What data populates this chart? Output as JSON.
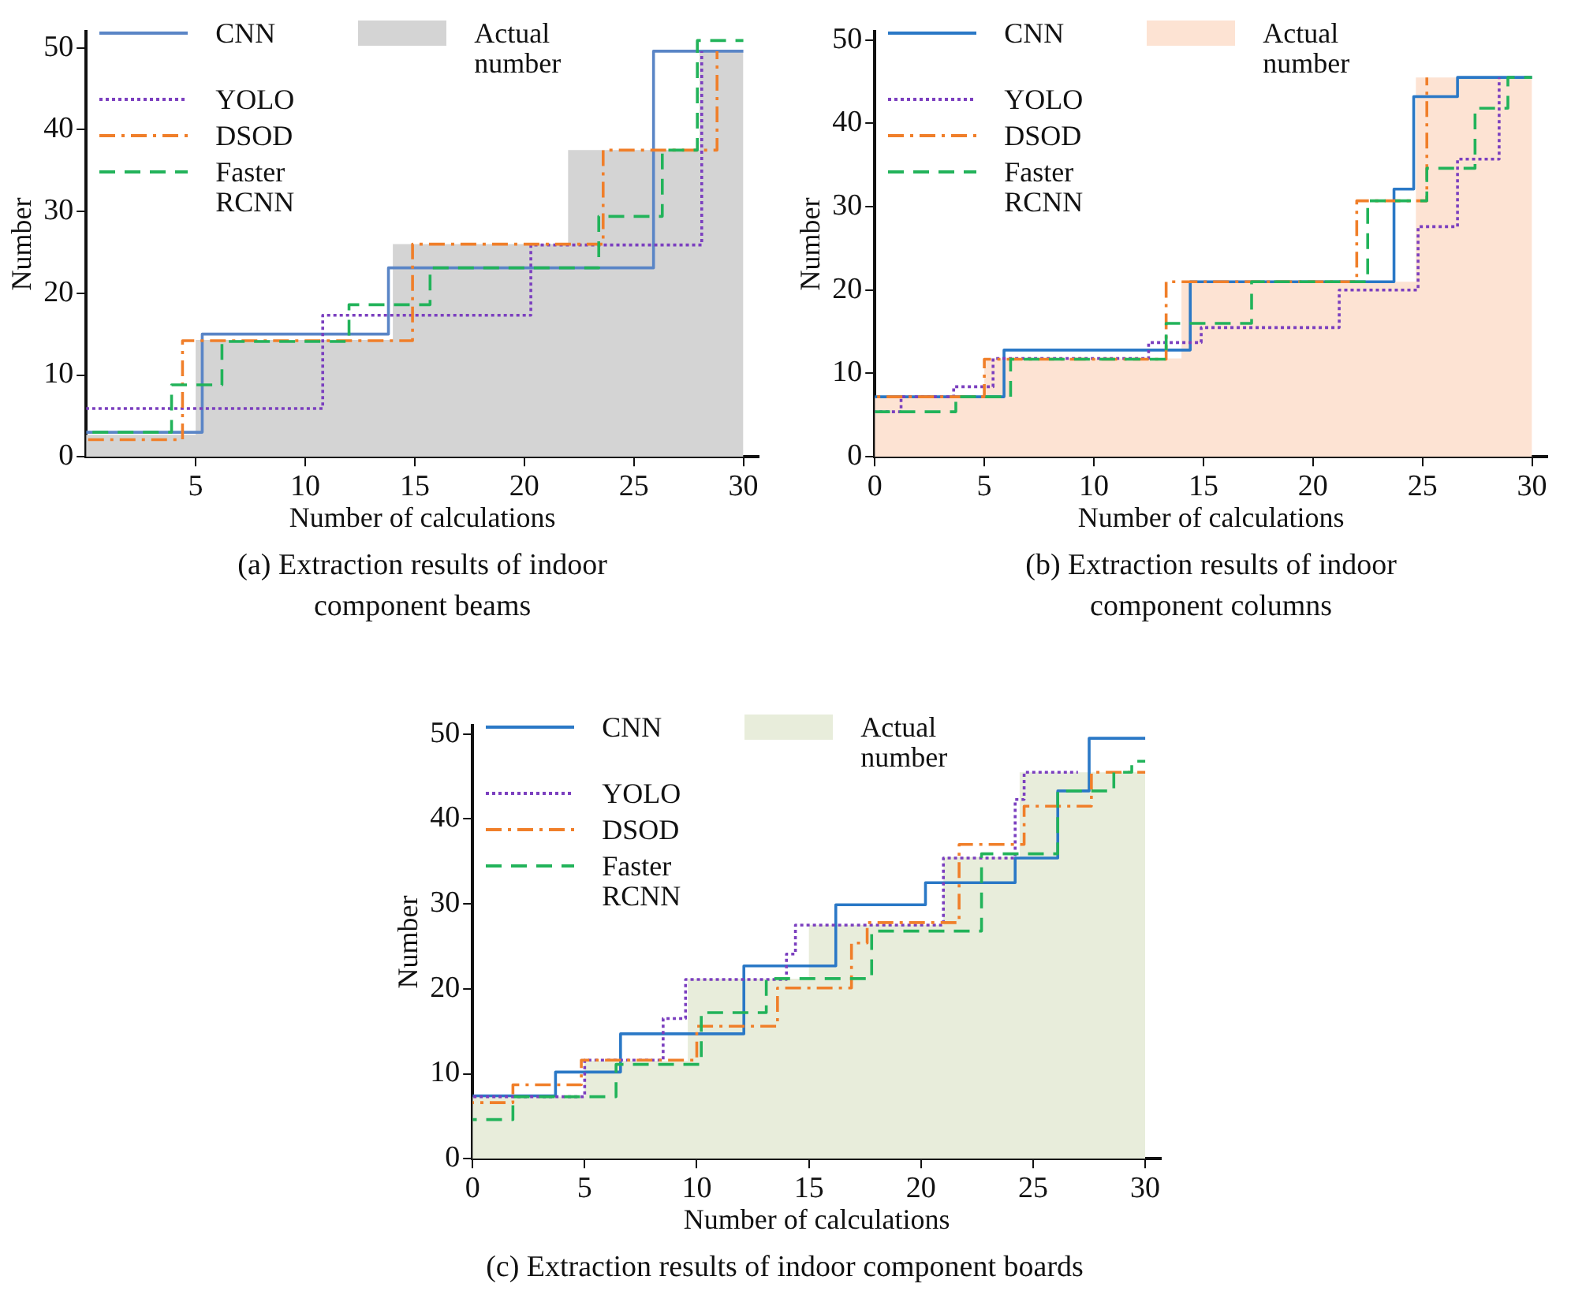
{
  "chart_data": [
    {
      "type": "step",
      "title": "(a) Extraction results of indoor component beams",
      "xlabel": "Number of calculations",
      "ylabel": "Number",
      "xlim": [
        0,
        30.7
      ],
      "xticks": [
        5,
        10,
        15,
        20,
        25,
        30
      ],
      "ylim": [
        0,
        52
      ],
      "yticks": [
        0,
        10,
        20,
        30,
        40,
        50
      ],
      "grid": false,
      "legend": "top left",
      "series": [
        {
          "name": "CNN",
          "color": "#5a85c6",
          "line_style": "solid",
          "x": [
            0,
            5.3,
            13.8,
            25.9,
            30
          ],
          "values": [
            3,
            15,
            23.1,
            49.6,
            49.6
          ]
        },
        {
          "name": "YOLO",
          "color": "#7b3fbf",
          "line_style": "dotted",
          "x": [
            0,
            10.8,
            20.3,
            28.1
          ],
          "values": [
            5.9,
            17.3,
            25.9,
            49.6
          ]
        },
        {
          "name": "DSOD",
          "color": "#f07f2a",
          "line_style": "dashdot",
          "x": [
            0,
            4.4,
            14.9,
            23.6,
            28.8
          ],
          "values": [
            2.1,
            14.2,
            26,
            37.5,
            49.6
          ]
        },
        {
          "name": "Faster RCNN",
          "color": "#22b35a",
          "line_style": "dashed",
          "x": [
            0,
            3.9,
            6.2,
            12,
            15.7,
            23.4,
            26.3,
            27.9,
            30
          ],
          "values": [
            3,
            8.8,
            14.1,
            18.6,
            23.1,
            29.4,
            37.5,
            50.9,
            50.9
          ]
        },
        {
          "name": "Actual number",
          "type": "area",
          "color": "#d4d4d4",
          "x": [
            0,
            5,
            14,
            22,
            28,
            30
          ],
          "values": [
            2.7,
            14.3,
            26,
            37.5,
            49.5,
            49.5
          ]
        }
      ]
    },
    {
      "type": "step",
      "title": "(b) Extraction results of indoor component columns",
      "xlabel": "Number of calculations",
      "ylabel": "Number",
      "xlim": [
        0,
        30.7
      ],
      "xticks": [
        0,
        5,
        10,
        15,
        20,
        25,
        30
      ],
      "ylim": [
        0,
        51
      ],
      "yticks": [
        0,
        10,
        20,
        30,
        40,
        50
      ],
      "grid": false,
      "legend": "top left",
      "series": [
        {
          "name": "CNN",
          "color": "#2a78c6",
          "line_style": "solid",
          "x": [
            0,
            5.9,
            14.4,
            23.7,
            24.6,
            26.6,
            30
          ],
          "values": [
            7.2,
            12.8,
            21,
            32.1,
            43.2,
            45.5,
            45.5
          ]
        },
        {
          "name": "YOLO",
          "color": "#7b3fbf",
          "line_style": "dotted",
          "x": [
            0,
            1.2,
            3.6,
            5.4,
            12.5,
            14.9,
            21.2,
            24.8,
            26.6,
            28.5
          ],
          "values": [
            5.4,
            7.2,
            8.4,
            11.8,
            13.7,
            15.5,
            20,
            27.6,
            35.7,
            45.5
          ]
        },
        {
          "name": "DSOD",
          "color": "#f07f2a",
          "line_style": "dashdot",
          "x": [
            0,
            5,
            13.3,
            22,
            25.2
          ],
          "values": [
            7.2,
            11.7,
            21,
            30.7,
            45.5
          ]
        },
        {
          "name": "Faster RCNN",
          "color": "#22b35a",
          "line_style": "dashed",
          "x": [
            0,
            3.7,
            6.2,
            13.3,
            17.2,
            22.5,
            25.2,
            27.4,
            28.9,
            30
          ],
          "values": [
            5.4,
            7.2,
            11.7,
            16,
            21,
            30.7,
            34.6,
            41.8,
            45.5,
            45.5
          ]
        },
        {
          "name": "Actual number",
          "type": "area",
          "color": "#fde3d3",
          "x": [
            0,
            5,
            14,
            24.7,
            30
          ],
          "values": [
            7.2,
            11.8,
            21,
            45.5,
            45.5
          ]
        }
      ]
    },
    {
      "type": "step",
      "title": "(c) Extraction results of indoor component boards",
      "xlabel": "Number of calculations",
      "ylabel": "Number",
      "xlim": [
        0,
        30.7
      ],
      "xticks": [
        0,
        5,
        10,
        15,
        20,
        25,
        30
      ],
      "ylim": [
        0,
        51
      ],
      "yticks": [
        0,
        10,
        20,
        30,
        40,
        50
      ],
      "grid": false,
      "legend": "top left",
      "series": [
        {
          "name": "CNN",
          "color": "#2a78c6",
          "line_style": "solid",
          "x": [
            0,
            3.7,
            6.6,
            12.1,
            16.2,
            20.2,
            24.2,
            26.1,
            27.5,
            30
          ],
          "values": [
            7.4,
            10.2,
            14.7,
            22.7,
            29.9,
            32.5,
            35.4,
            43.3,
            49.5,
            49.5
          ]
        },
        {
          "name": "YOLO",
          "color": "#7b3fbf",
          "line_style": "dotted",
          "x": [
            0,
            5,
            8.5,
            9.5,
            14,
            14.4,
            21,
            24.2,
            24.6,
            27
          ],
          "values": [
            7.3,
            11.6,
            16.5,
            21.1,
            24.1,
            27.5,
            35.4,
            42.3,
            45.5,
            45.5
          ]
        },
        {
          "name": "DSOD",
          "color": "#f07f2a",
          "line_style": "dashdot",
          "x": [
            0,
            1.8,
            4.85,
            10,
            13.6,
            16.9,
            17.6,
            21.7,
            24.6,
            27.6,
            30
          ],
          "values": [
            6.6,
            8.7,
            11.6,
            15.6,
            20.1,
            25.4,
            27.8,
            37,
            41.5,
            45.5,
            45.5
          ]
        },
        {
          "name": "Faster RCNN",
          "color": "#22b35a",
          "line_style": "dashed",
          "x": [
            0,
            1.8,
            6.4,
            10.2,
            13.1,
            17.8,
            22.7,
            26.1,
            28.6,
            29.4,
            30
          ],
          "values": [
            4.6,
            7.3,
            11.1,
            17.2,
            21.2,
            26.8,
            35.9,
            43.3,
            45.5,
            46.8,
            46.8
          ]
        },
        {
          "name": "Actual number",
          "type": "area",
          "color": "#e8eddb",
          "x": [
            0,
            5,
            9.6,
            15,
            21,
            24.4,
            30
          ],
          "values": [
            7.3,
            11.5,
            21.2,
            27.5,
            35.5,
            45.5,
            45.5
          ]
        }
      ]
    }
  ]
}
